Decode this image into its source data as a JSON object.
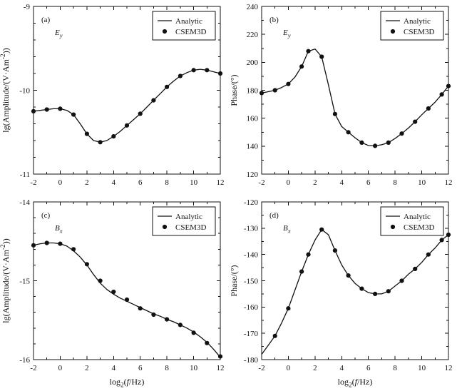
{
  "figure": {
    "background": "#ffffff",
    "line_color": "#111111",
    "dot_color": "#111111",
    "text_color": "#111111"
  },
  "legend": {
    "analytic": "Analytic",
    "csem3d": "CSEM3D"
  },
  "chart_data": [
    {
      "type": "line",
      "panel_label": "(a)",
      "variable": [
        {
          "t": "E",
          "italic": true
        },
        {
          "t": "y",
          "sub": true,
          "italic": true
        }
      ],
      "xlim": [
        -2,
        12
      ],
      "ylim": [
        -11,
        -9
      ],
      "x_ticks": [
        -2,
        0,
        2,
        4,
        6,
        8,
        10,
        12
      ],
      "x_minor_step": 1,
      "y_ticks": [
        -11,
        -10,
        -9
      ],
      "y_minor_step": 0.2,
      "xlabel": null,
      "ylabel": [
        {
          "t": "lg(Amplitude/(V·Am"
        },
        {
          "t": "-2",
          "sup": true
        },
        {
          "t": "))"
        }
      ],
      "legend_position": "top-right",
      "grid": false,
      "series": [
        {
          "name": "Analytic",
          "style": "line",
          "x": [
            -2,
            -1.5,
            -1,
            -0.5,
            0,
            0.5,
            1,
            1.5,
            2,
            2.5,
            3,
            3.5,
            4,
            4.5,
            5,
            5.5,
            6,
            6.5,
            7,
            7.5,
            8,
            8.5,
            9,
            9.5,
            10,
            10.5,
            11,
            11.5,
            12
          ],
          "y": [
            -10.25,
            -10.24,
            -10.23,
            -10.22,
            -10.22,
            -10.24,
            -10.29,
            -10.4,
            -10.52,
            -10.6,
            -10.62,
            -10.6,
            -10.55,
            -10.49,
            -10.42,
            -10.35,
            -10.28,
            -10.2,
            -10.12,
            -10.04,
            -9.96,
            -9.89,
            -9.83,
            -9.79,
            -9.76,
            -9.75,
            -9.76,
            -9.78,
            -9.8
          ]
        },
        {
          "name": "CSEM3D",
          "style": "scatter",
          "x": [
            -2,
            -1,
            0,
            1,
            2,
            3,
            4,
            5,
            6,
            7,
            8,
            9,
            10,
            11,
            12
          ],
          "y": [
            -10.25,
            -10.23,
            -10.22,
            -10.29,
            -10.52,
            -10.62,
            -10.55,
            -10.42,
            -10.28,
            -10.12,
            -9.96,
            -9.83,
            -9.76,
            -9.76,
            -9.8
          ]
        }
      ]
    },
    {
      "type": "line",
      "panel_label": "(b)",
      "variable": [
        {
          "t": "E",
          "italic": true
        },
        {
          "t": "y",
          "sub": true,
          "italic": true
        }
      ],
      "xlim": [
        -2,
        12
      ],
      "ylim": [
        120,
        240
      ],
      "x_ticks": [
        -2,
        0,
        2,
        4,
        6,
        8,
        10,
        12
      ],
      "x_minor_step": 1,
      "y_ticks": [
        120,
        140,
        160,
        180,
        200,
        220,
        240
      ],
      "y_minor_step": 10,
      "xlabel": null,
      "ylabel": [
        {
          "t": "Phase/(°)"
        }
      ],
      "legend_position": "top-right",
      "grid": false,
      "series": [
        {
          "name": "Analytic",
          "style": "line",
          "x": [
            -2,
            -1.5,
            -1,
            -0.5,
            0,
            0.5,
            1,
            1.5,
            2,
            2.5,
            3,
            3.5,
            4,
            4.5,
            5,
            5.5,
            6,
            6.5,
            7,
            7.5,
            8,
            8.5,
            9,
            9.5,
            10,
            10.5,
            11,
            11.5,
            12
          ],
          "y": [
            178,
            179,
            180,
            182,
            184.5,
            189.5,
            197,
            208,
            209.5,
            204,
            184,
            163,
            154,
            150,
            146,
            142.5,
            140.5,
            140.2,
            141,
            142.5,
            145.5,
            149,
            153,
            157.5,
            162.5,
            167,
            171.5,
            177,
            183
          ]
        },
        {
          "name": "CSEM3D",
          "style": "scatter",
          "x": [
            -2,
            -1,
            0,
            1,
            1.5,
            2.5,
            3.5,
            4.5,
            5.5,
            6.5,
            7.5,
            8.5,
            9.5,
            10.5,
            11.5,
            12
          ],
          "y": [
            178,
            180,
            184.5,
            197,
            208,
            204,
            163,
            150,
            142.5,
            140.2,
            142.5,
            149,
            157.5,
            167,
            177,
            183
          ]
        }
      ]
    },
    {
      "type": "line",
      "panel_label": "(c)",
      "variable": [
        {
          "t": "B",
          "italic": true
        },
        {
          "t": "x",
          "sub": true,
          "italic": true
        }
      ],
      "xlim": [
        -2,
        12
      ],
      "ylim": [
        -16,
        -14
      ],
      "x_ticks": [
        -2,
        0,
        2,
        4,
        6,
        8,
        10,
        12
      ],
      "x_minor_step": 1,
      "y_ticks": [
        -16,
        -15,
        -14
      ],
      "y_minor_step": 0.2,
      "xlabel": [
        {
          "t": "log"
        },
        {
          "t": "2",
          "sub": true
        },
        {
          "t": "("
        },
        {
          "t": "f",
          "italic": true
        },
        {
          "t": "/Hz)"
        }
      ],
      "ylabel": [
        {
          "t": "lg(Amplitude/(V·Am"
        },
        {
          "t": "-2",
          "sup": true
        },
        {
          "t": "))"
        }
      ],
      "legend_position": "top-right",
      "grid": false,
      "series": [
        {
          "name": "Analytic",
          "style": "line",
          "x": [
            -2,
            -1.5,
            -1,
            -0.5,
            0,
            0.5,
            1,
            1.5,
            2,
            2.5,
            3,
            3.5,
            4,
            4.5,
            5,
            5.5,
            6,
            6.5,
            7,
            7.5,
            8,
            8.5,
            9,
            9.5,
            10,
            10.5,
            11,
            11.5,
            12
          ],
          "y": [
            -14.55,
            -14.53,
            -14.52,
            -14.52,
            -14.53,
            -14.56,
            -14.62,
            -14.7,
            -14.8,
            -14.92,
            -15.03,
            -15.11,
            -15.17,
            -15.22,
            -15.26,
            -15.3,
            -15.34,
            -15.38,
            -15.42,
            -15.45,
            -15.49,
            -15.52,
            -15.56,
            -15.6,
            -15.65,
            -15.71,
            -15.78,
            -15.87,
            -15.97
          ]
        },
        {
          "name": "CSEM3D",
          "style": "scatter",
          "x": [
            -2,
            -1,
            0,
            1,
            2,
            3,
            4,
            5,
            6,
            7,
            8,
            9,
            10,
            11,
            12
          ],
          "y": [
            -14.55,
            -14.52,
            -14.53,
            -14.6,
            -14.79,
            -15.0,
            -15.14,
            -15.24,
            -15.35,
            -15.43,
            -15.49,
            -15.56,
            -15.66,
            -15.79,
            -15.96
          ]
        }
      ]
    },
    {
      "type": "line",
      "panel_label": "(d)",
      "variable": [
        {
          "t": "B",
          "italic": true
        },
        {
          "t": "x",
          "sub": true,
          "italic": true
        }
      ],
      "xlim": [
        -2,
        12
      ],
      "ylim": [
        -180,
        -120
      ],
      "x_ticks": [
        -2,
        0,
        2,
        4,
        6,
        8,
        10,
        12
      ],
      "x_minor_step": 1,
      "y_ticks": [
        -180,
        -170,
        -160,
        -150,
        -140,
        -130,
        -120
      ],
      "y_minor_step": 5,
      "xlabel": [
        {
          "t": "log"
        },
        {
          "t": "2",
          "sub": true
        },
        {
          "t": "("
        },
        {
          "t": "f",
          "italic": true
        },
        {
          "t": "/Hz)"
        }
      ],
      "ylabel": [
        {
          "t": "Phase/(°)"
        }
      ],
      "legend_position": "top-right",
      "grid": false,
      "series": [
        {
          "name": "Analytic",
          "style": "line",
          "x": [
            -2,
            -1.5,
            -1,
            -0.5,
            0,
            0.5,
            1,
            1.5,
            2,
            2.5,
            3,
            3.5,
            4,
            4.5,
            5,
            5.5,
            6,
            6.5,
            7,
            7.5,
            8,
            8.5,
            9,
            9.5,
            10,
            10.5,
            11,
            11.5,
            12
          ],
          "y": [
            -178,
            -174.5,
            -171,
            -166,
            -160.5,
            -153.5,
            -146.5,
            -140,
            -134.5,
            -130.5,
            -132.5,
            -138.5,
            -144,
            -148,
            -151,
            -153,
            -154.5,
            -155,
            -155,
            -154,
            -152,
            -150,
            -147.5,
            -145.5,
            -143,
            -140,
            -137.5,
            -134.5,
            -132.5
          ]
        },
        {
          "name": "CSEM3D",
          "style": "scatter",
          "x": [
            -1,
            0,
            1,
            1.5,
            2.5,
            3.5,
            4.5,
            5.5,
            6.5,
            7.5,
            8.5,
            9.5,
            10.5,
            11.5,
            12
          ],
          "y": [
            -171,
            -160.5,
            -146.5,
            -140,
            -130.5,
            -138.5,
            -148,
            -153,
            -155,
            -154,
            -150,
            -145.5,
            -140,
            -134.5,
            -132.5
          ]
        }
      ]
    }
  ]
}
